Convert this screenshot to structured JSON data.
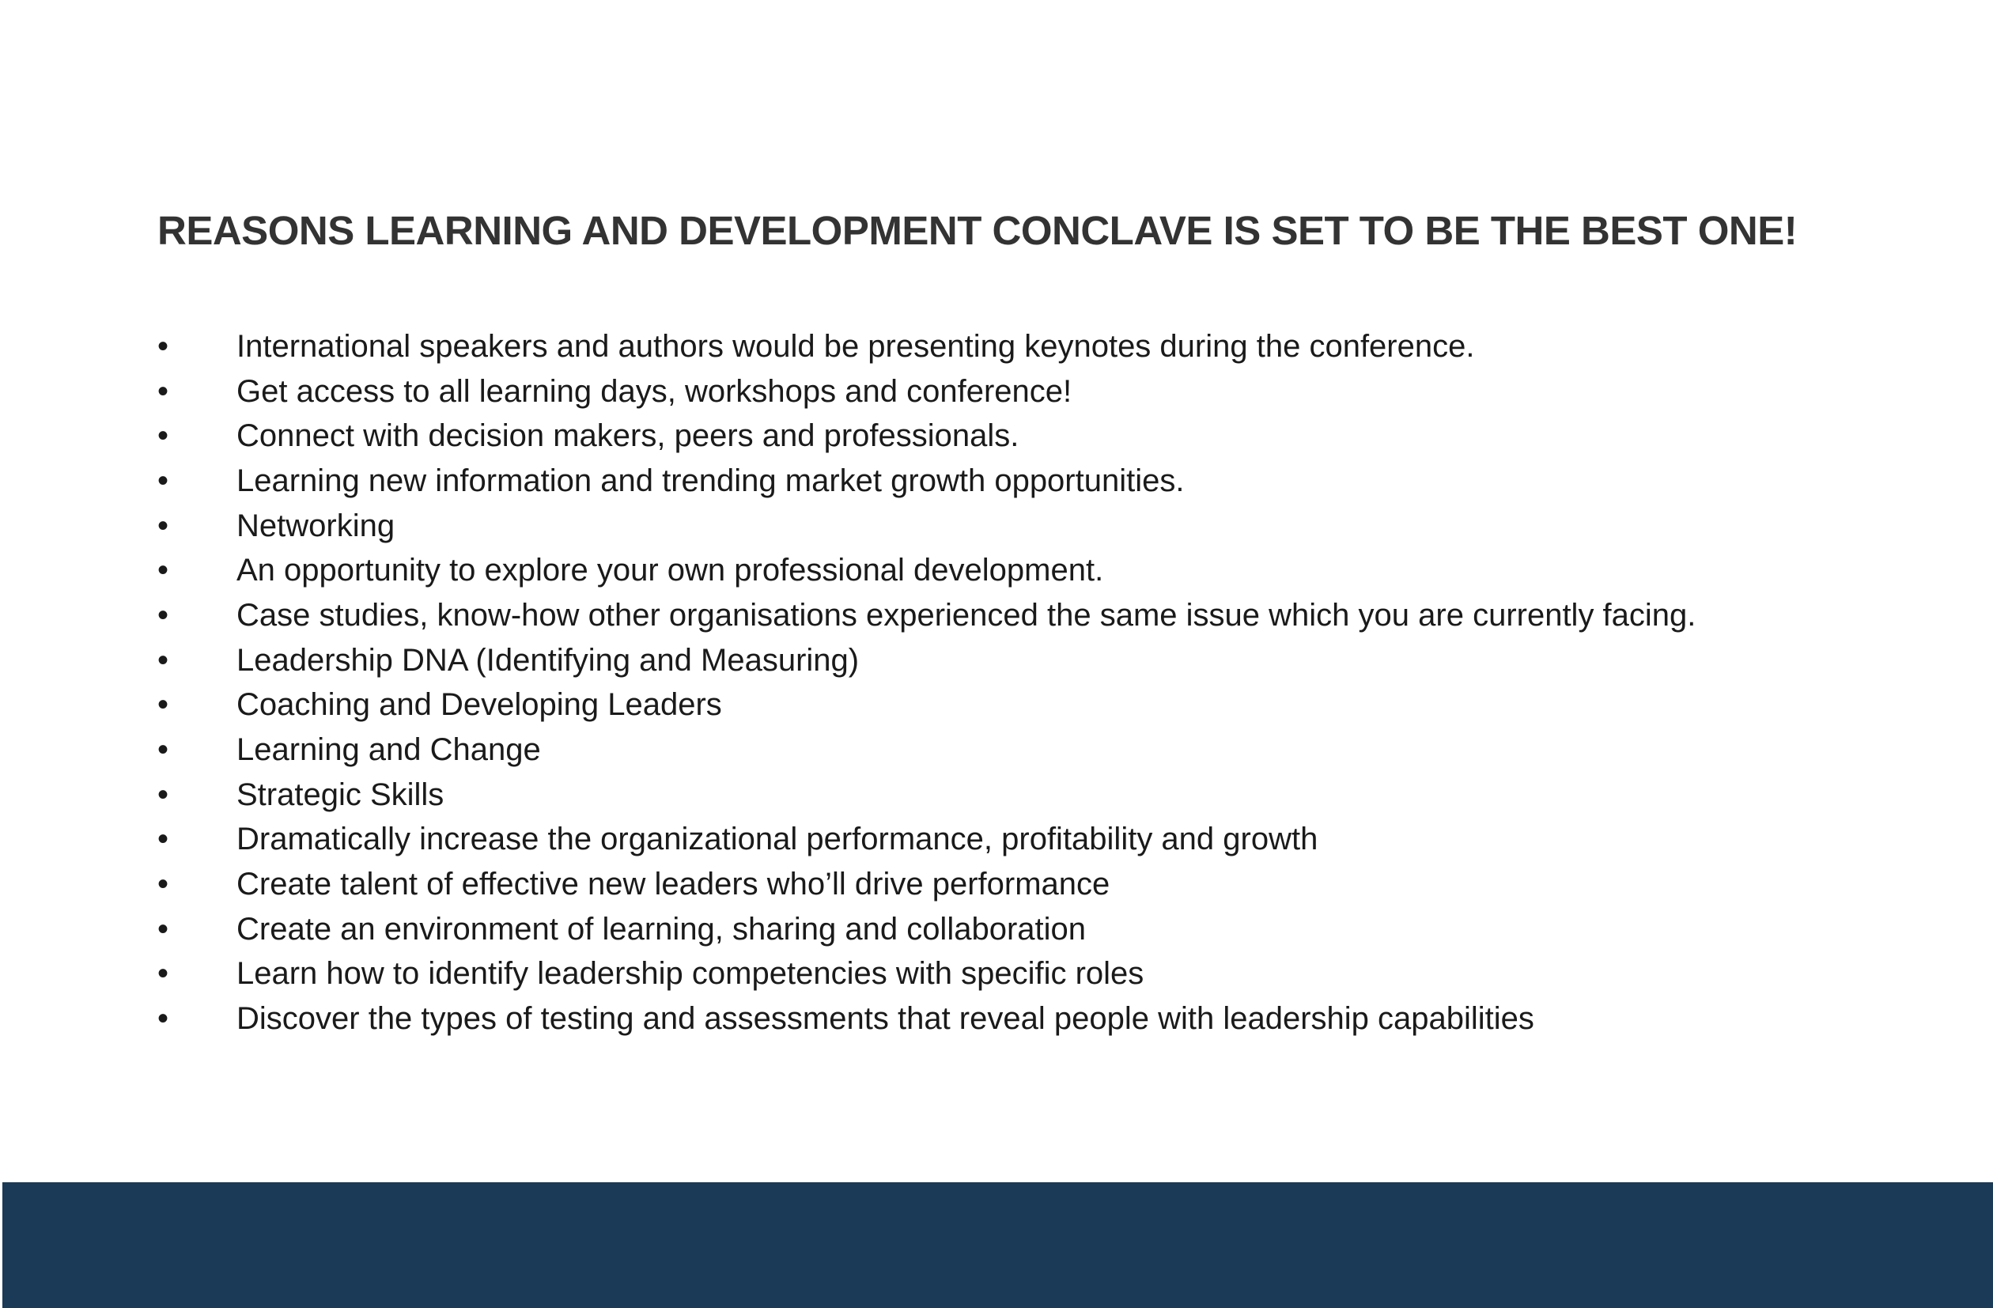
{
  "title": "REASONS LEARNING AND DEVELOPMENT CONCLAVE IS SET TO BE THE BEST ONE!",
  "bullet_symbol": "•",
  "items": [
    "International speakers and authors would be presenting keynotes during the conference.",
    "Get access to all learning days, workshops and conference!",
    "Connect with decision makers, peers and professionals.",
    "Learning new information and trending market growth opportunities.",
    "Networking",
    "An opportunity to explore your own professional development.",
    "Case studies, know-how other organisations experienced the same issue which you are currently facing.",
    "Leadership DNA (Identifying and Measuring)",
    "Coaching and Developing Leaders",
    "Learning and Change",
    "Strategic Skills",
    "Dramatically increase the organizational performance, profitability and growth",
    "Create talent of effective new leaders who’ll drive performance",
    "Create an environment of learning, sharing and collaboration",
    "Learn how to identify leadership competencies with specific roles",
    "Discover the types of testing and assessments that reveal people with leadership capabilities"
  ],
  "colors": {
    "footer_band": "#1a3a57",
    "title_text": "#333333"
  }
}
